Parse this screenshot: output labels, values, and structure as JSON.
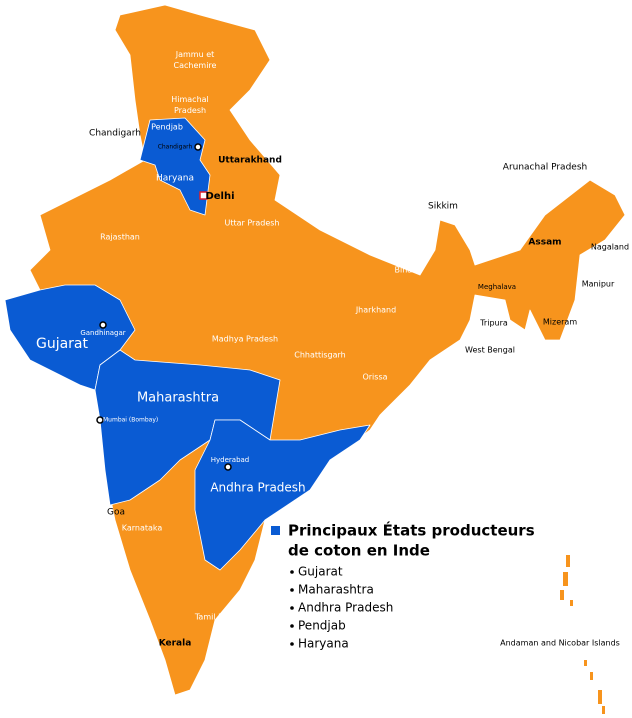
{
  "map": {
    "legend": {
      "title_lines": [
        "Principaux États producteurs",
        "de coton en Inde"
      ],
      "items": [
        "Gujarat",
        "Maharashtra",
        "Andhra Pradesh",
        "Pendjab",
        "Haryana"
      ]
    },
    "labels": [
      [
        "Jammu et",
        "Cachemire"
      ],
      [
        "Himachal",
        "Pradesh"
      ],
      [
        "Chandigarh"
      ],
      [
        "Pendjab"
      ],
      [
        "Chandigarh"
      ],
      [
        "Uttarakhand"
      ],
      [
        "Haryana"
      ],
      [
        "Delhi"
      ],
      [
        "Uttar Pradesh"
      ],
      [
        "Rajasthan"
      ],
      [
        "Gandhinagar"
      ],
      [
        "Gujarat"
      ],
      [
        "Madhya Pradesh"
      ],
      [
        "Bihar"
      ],
      [
        "Jharkhand"
      ],
      [
        "Chhattisgarh"
      ],
      [
        "Orissa"
      ],
      [
        "West Bengal"
      ],
      [
        "Maharashtra"
      ],
      [
        "Mumbai (Bombay)"
      ],
      [
        "Hyderabad"
      ],
      [
        "Andhra Pradesh"
      ],
      [
        "Goa"
      ],
      [
        "Karnataka"
      ],
      [
        "Kerala"
      ],
      [
        "Tamil Nadu"
      ],
      [
        "Sikkim"
      ],
      [
        "Arunachal Pradesh"
      ],
      [
        "Assam"
      ],
      [
        "Nagaland"
      ],
      [
        "Manipur"
      ],
      [
        "Meghalava"
      ],
      [
        "Tripura"
      ],
      [
        "Mizeram"
      ],
      [
        "Andaman and Nicobar Islands"
      ]
    ]
  }
}
